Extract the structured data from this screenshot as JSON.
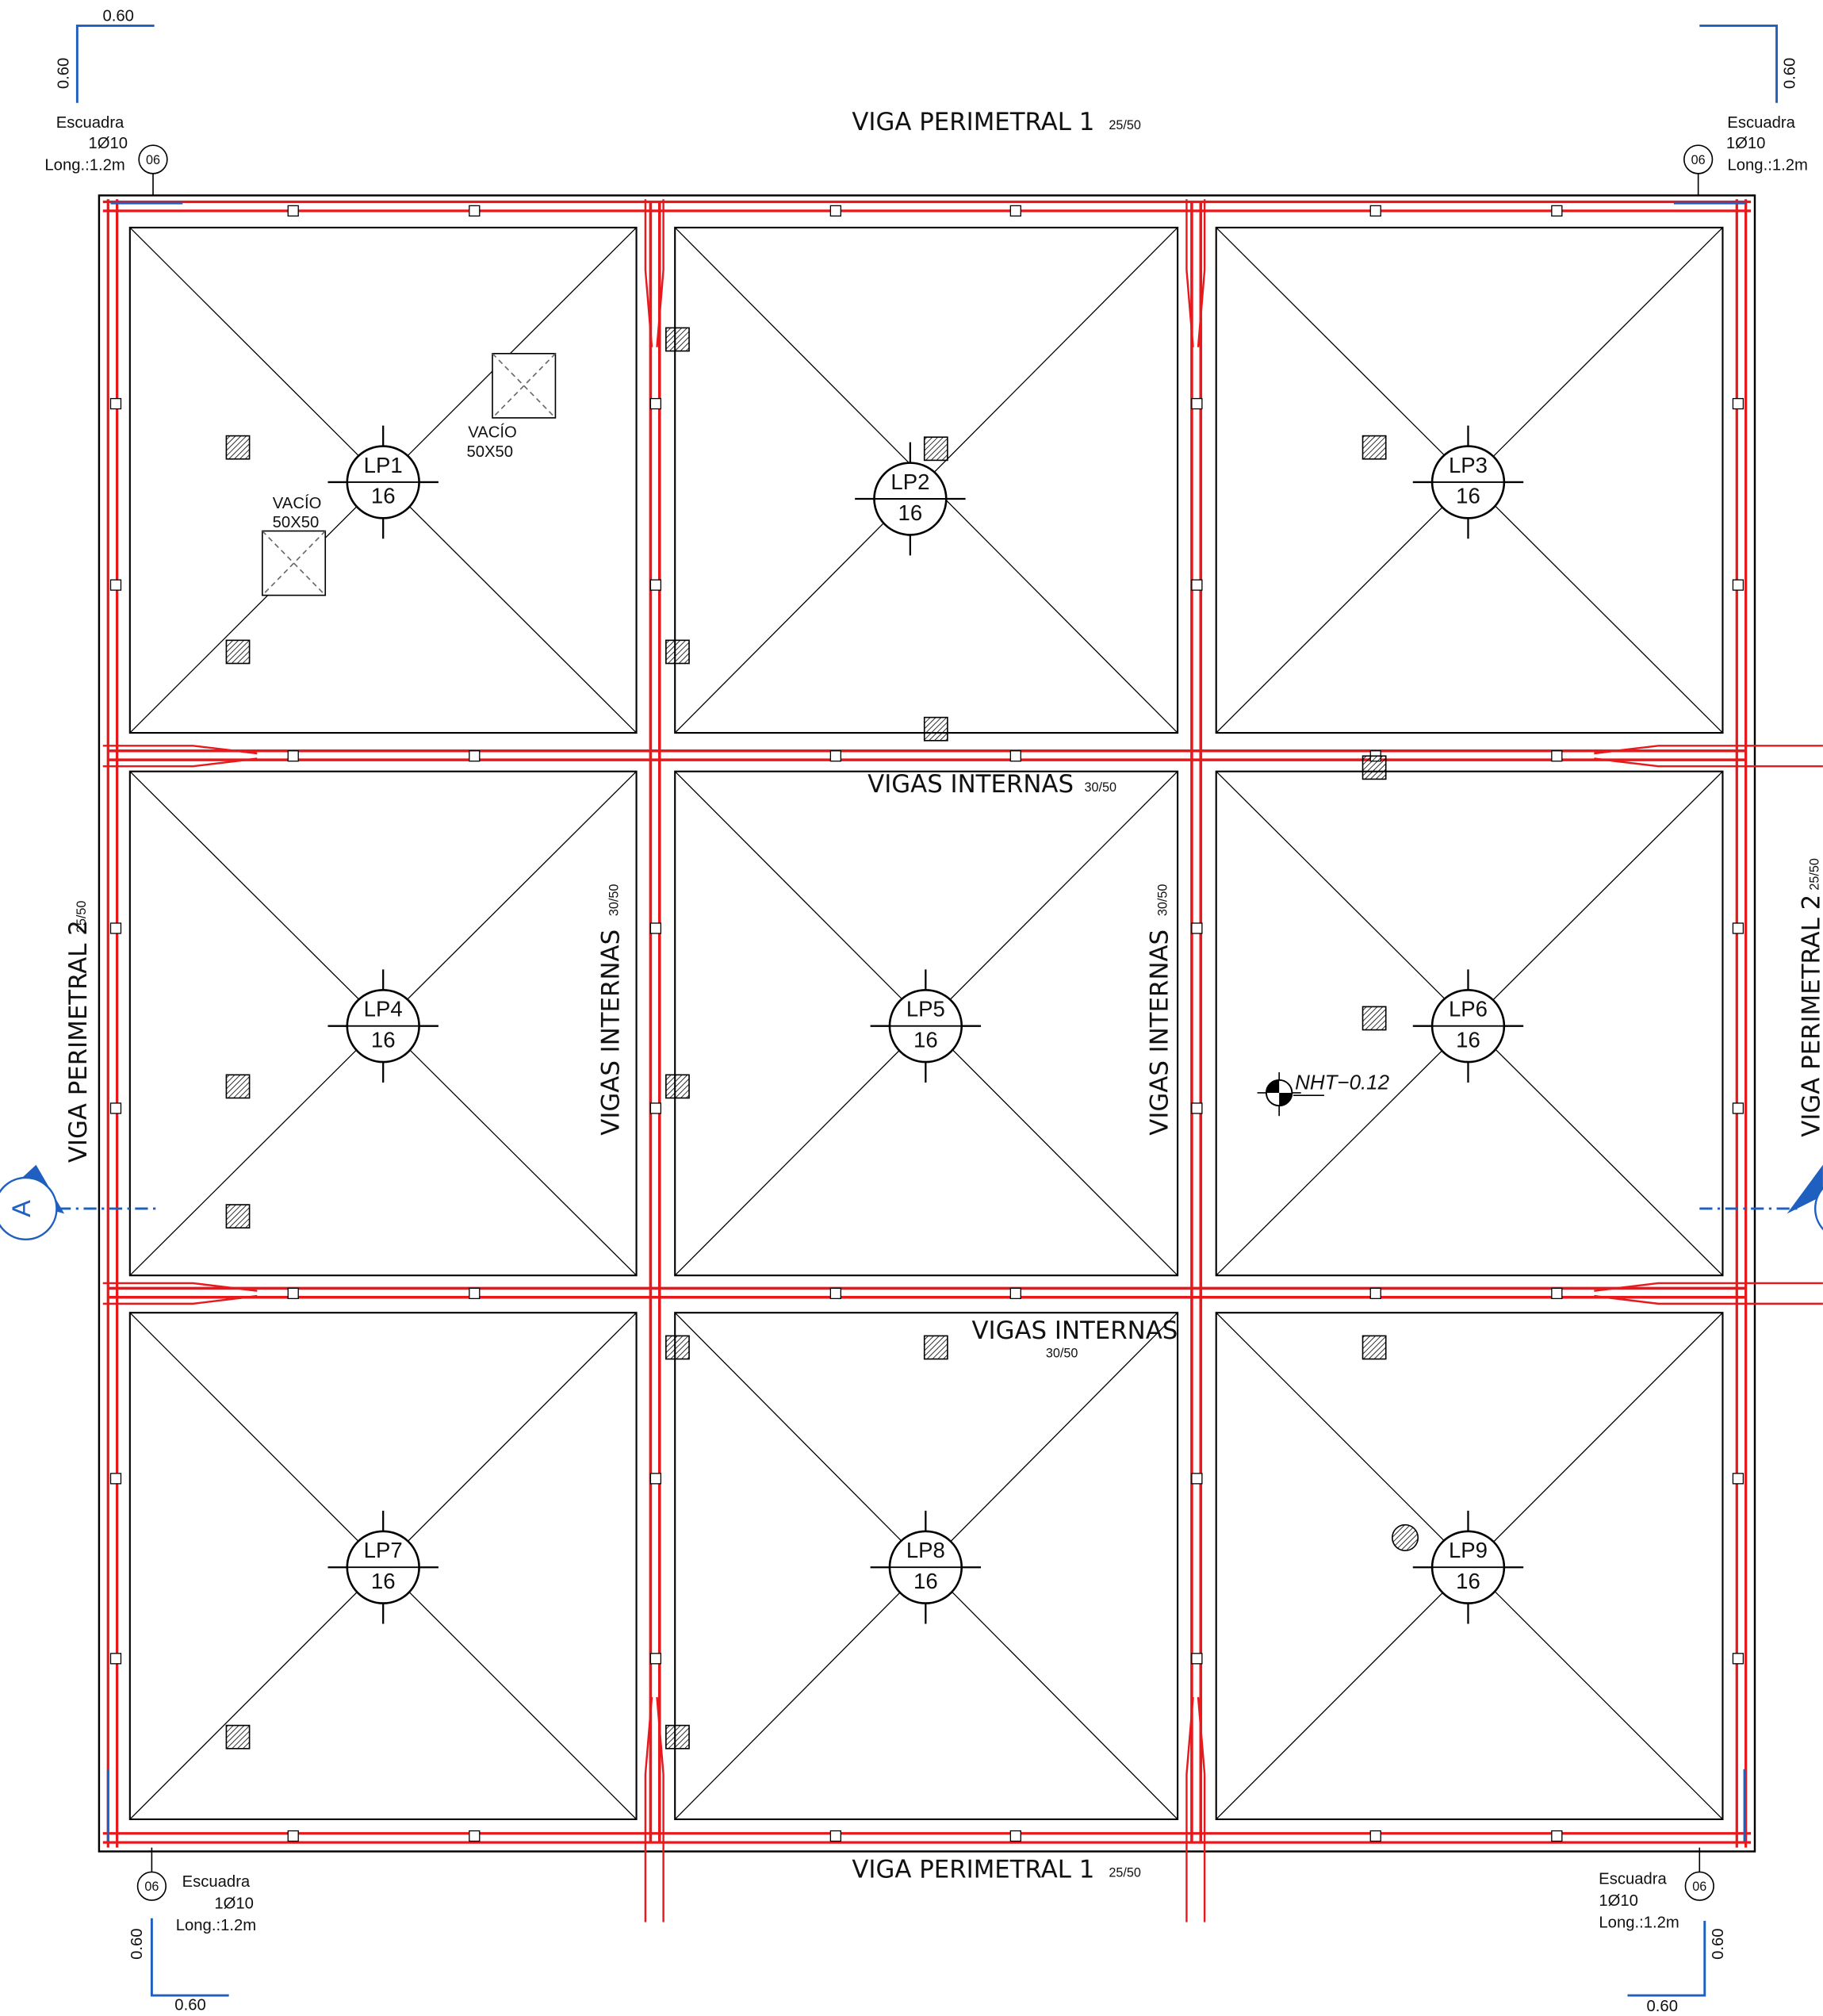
{
  "corners": [
    {
      "dim_h": "0.60",
      "dim_v": "0.60",
      "label": "Escuadra",
      "bar": "1Ø10",
      "length": "Long.:1.2m",
      "tag": "06"
    },
    {
      "dim_v": "0.60",
      "label": "Escuadra",
      "bar": "1Ø10",
      "length": "Long.:1.2m",
      "tag": "06"
    },
    {
      "dim_h": "0.60",
      "dim_v": "0.60",
      "label": "Escuadra",
      "bar": "1Ø10",
      "length": "Long.:1.2m",
      "tag": "06"
    },
    {
      "dim_h": "0.60",
      "dim_v": "0.60",
      "label": "Escuadra",
      "bar": "1Ø10",
      "length": "Long.:1.2m",
      "tag": "06"
    }
  ],
  "perimeter_beams": [
    {
      "name": "VIGA PERIMETRAL 1",
      "size": "25/50"
    },
    {
      "name": "VIGA PERIMETRAL 1",
      "size": "25/50"
    },
    {
      "name": "VIGA PERIMETRAL 2",
      "size": "25/50"
    },
    {
      "name": "VIGA PERIMETRAL 2",
      "size": "25/50"
    }
  ],
  "internal_beams": [
    {
      "name": "VIGAS INTERNAS",
      "size": "30/50"
    },
    {
      "name": "VIGAS INTERNAS",
      "size": "30/50"
    },
    {
      "name": "VIGAS INTERNAS",
      "size": "30/50"
    },
    {
      "name": "VIGAS INTERNAS",
      "size": "30/50"
    }
  ],
  "panels": [
    {
      "id": "LP1",
      "thickness": "16"
    },
    {
      "id": "LP2",
      "thickness": "16"
    },
    {
      "id": "LP3",
      "thickness": "16"
    },
    {
      "id": "LP4",
      "thickness": "16"
    },
    {
      "id": "LP5",
      "thickness": "16"
    },
    {
      "id": "LP6",
      "thickness": "16"
    },
    {
      "id": "LP7",
      "thickness": "16"
    },
    {
      "id": "LP8",
      "thickness": "16"
    },
    {
      "id": "LP9",
      "thickness": "16"
    }
  ],
  "voids": [
    {
      "label": "VACÍO",
      "size": "50X50"
    },
    {
      "label": "VACÍO",
      "size": "50X50"
    }
  ],
  "level_mark": "NHT−0.12",
  "section_mark": "A"
}
